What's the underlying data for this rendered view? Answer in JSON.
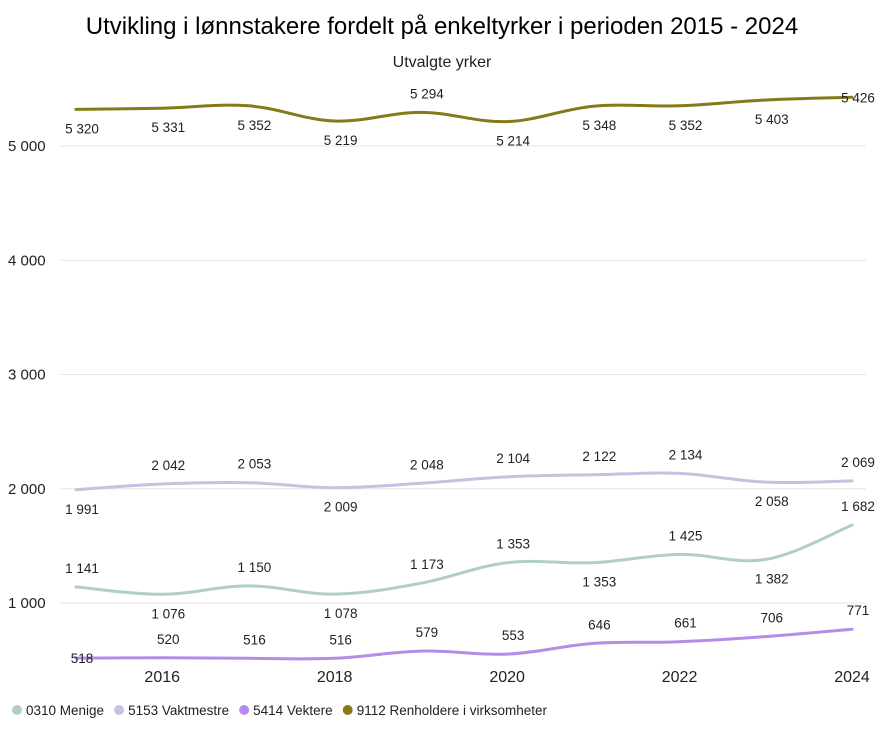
{
  "chart_data": {
    "type": "line",
    "title": "Utvikling i lønnstakere fordelt på enkeltyrker i perioden 2015 - 2024",
    "subtitle": "Utvalgte yrker",
    "xlabel": "",
    "ylabel": "",
    "x": [
      2015,
      2016,
      2017,
      2018,
      2019,
      2020,
      2021,
      2022,
      2023,
      2024
    ],
    "x_tick_labels": [
      "2016",
      "2018",
      "2020",
      "2022",
      "2024"
    ],
    "x_tick_values": [
      2016,
      2018,
      2020,
      2022,
      2024
    ],
    "y_tick_labels": [
      "1 000",
      "2 000",
      "3 000",
      "4 000",
      "5 000"
    ],
    "y_tick_values": [
      1000,
      2000,
      3000,
      4000,
      5000
    ],
    "ylim": [
      500,
      5600
    ],
    "grid": true,
    "legend_position": "bottom-left",
    "series": [
      {
        "name": "0310 Menige",
        "color": "#b0cfc4",
        "values": [
          1141,
          1076,
          1150,
          1078,
          1173,
          1353,
          1353,
          1425,
          1382,
          1682
        ],
        "labels": [
          "1 141",
          "1 076",
          "1 150",
          "1 078",
          "1 173",
          "1 353",
          "1 353",
          "1 425",
          "1 382",
          "1 682"
        ],
        "label_side": [
          "above",
          "below",
          "above",
          "below",
          "above",
          "above",
          "below",
          "above",
          "below",
          "above"
        ]
      },
      {
        "name": "5153 Vaktmestre",
        "color": "#c2c3de",
        "values": [
          1991,
          2042,
          2053,
          2009,
          2048,
          2104,
          2122,
          2134,
          2058,
          2069
        ],
        "labels": [
          "1 991",
          "2 042",
          "2 053",
          "2 009",
          "2 048",
          "2 104",
          "2 122",
          "2 134",
          "2 058",
          "2 069"
        ],
        "label_side": [
          "below",
          "above",
          "above",
          "below",
          "above",
          "above",
          "above",
          "above",
          "below",
          "above"
        ]
      },
      {
        "name": "5414 Vektere",
        "color": "#b38de8",
        "values": [
          518,
          520,
          516,
          516,
          579,
          553,
          646,
          661,
          706,
          771
        ],
        "labels": [
          "518",
          "520",
          "516",
          "516",
          "579",
          "553",
          "646",
          "661",
          "706",
          "771"
        ],
        "label_side": [
          "on",
          "above",
          "above",
          "above",
          "above",
          "above",
          "above",
          "above",
          "above",
          "above"
        ]
      },
      {
        "name": "9112 Renholdere i virksomheter",
        "color": "#857a1a",
        "values": [
          5320,
          5331,
          5352,
          5219,
          5294,
          5214,
          5348,
          5352,
          5403,
          5426
        ],
        "labels": [
          "5 320",
          "5 331",
          "5 352",
          "5 219",
          "5 294",
          "5 214",
          "5 348",
          "5 352",
          "5 403",
          "5 426"
        ],
        "label_side": [
          "below",
          "below",
          "below",
          "below",
          "above",
          "below",
          "below",
          "below",
          "below",
          "on"
        ]
      }
    ]
  }
}
